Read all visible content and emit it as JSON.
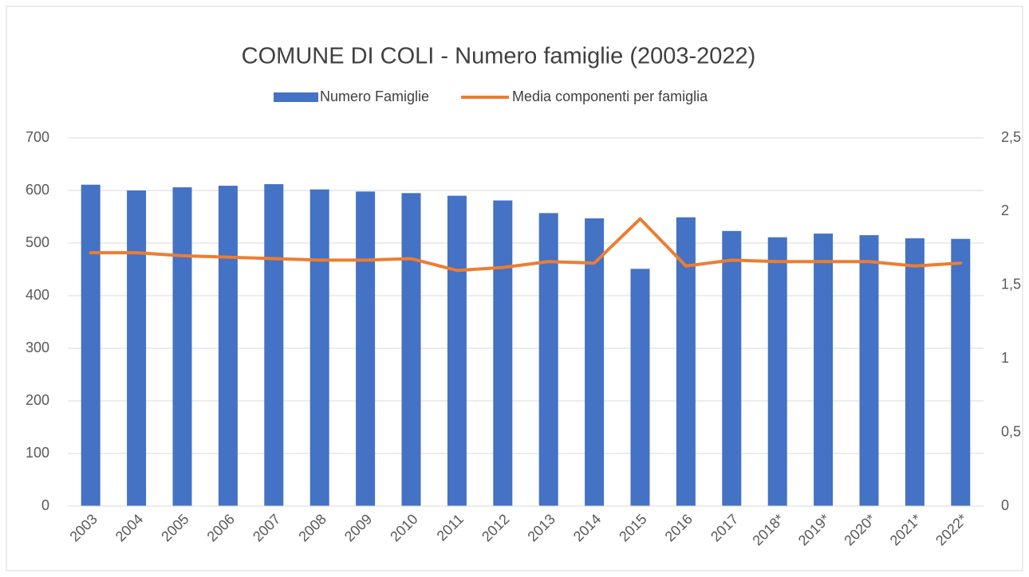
{
  "chart_data": {
    "type": "bar_line",
    "title": "COMUNE DI COLI - Numero famiglie (2003-2022)",
    "categories": [
      "2003",
      "2004",
      "2005",
      "2006",
      "2007",
      "2008",
      "2009",
      "2010",
      "2011",
      "2012",
      "2013",
      "2014",
      "2015",
      "2016",
      "2017",
      "2018*",
      "2019*",
      "2020*",
      "2021*",
      "2022*"
    ],
    "series": [
      {
        "name": "Numero Famiglie",
        "type": "bar",
        "color": "#4472c4",
        "axis": "y",
        "values": [
          611,
          600,
          606,
          609,
          612,
          602,
          598,
          595,
          590,
          581,
          557,
          547,
          451,
          549,
          523,
          511,
          518,
          515,
          509,
          508
        ]
      },
      {
        "name": "Media componenti per famiglia",
        "type": "line",
        "color": "#ed7d31",
        "axis": "y2",
        "values": [
          1.72,
          1.72,
          1.7,
          1.69,
          1.68,
          1.67,
          1.67,
          1.68,
          1.6,
          1.62,
          1.66,
          1.65,
          1.95,
          1.63,
          1.67,
          1.66,
          1.66,
          1.66,
          1.63,
          1.65
        ]
      }
    ],
    "ylim": [
      0,
      700
    ],
    "yticks": [
      0,
      100,
      200,
      300,
      400,
      500,
      600,
      700
    ],
    "y2lim": [
      0,
      2.5
    ],
    "y2ticks": [
      0,
      {
        "value": 0.5,
        "label": "0,5"
      },
      1,
      {
        "value": 1.5,
        "label": "1,5"
      },
      2,
      {
        "value": 2.5,
        "label": "2,5"
      }
    ],
    "grid": true,
    "legend": "top"
  }
}
